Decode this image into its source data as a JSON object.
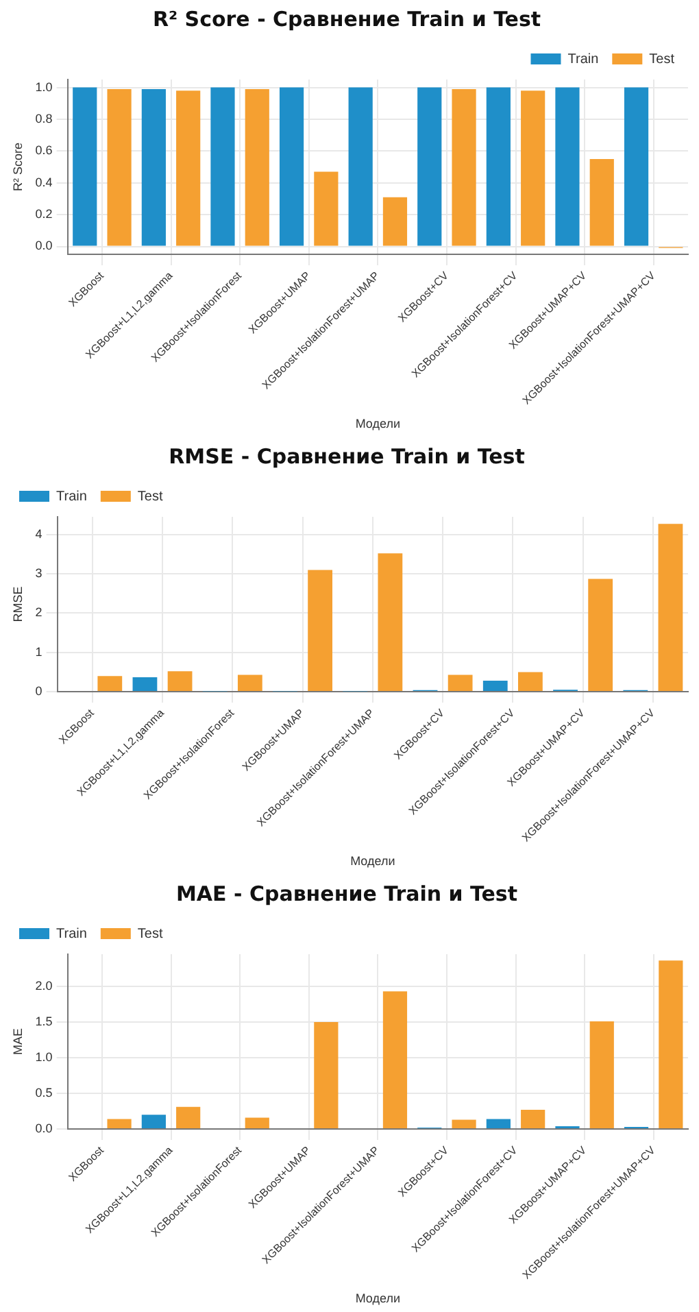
{
  "chart_data": [
    {
      "type": "bar",
      "title": "R² Score - Сравнение Train и Test",
      "xlabel": "Модели",
      "ylabel": "R² Score",
      "categories": [
        "XGBoost",
        "XGBoost+L1,L2,gamma",
        "XGBoost+IsolationForest",
        "XGBoost+UMAP",
        "XGBoost+IsolationForest+UMAP",
        "XGBoost+CV",
        "XGBoost+IsolationForest+CV",
        "XGBoost+UMAP+CV",
        "XGBoost+IsolationForest+UMAP+CV"
      ],
      "series": [
        {
          "name": "Train",
          "color": "#1f8fc9",
          "values": [
            1.0,
            0.99,
            1.0,
            1.0,
            1.0,
            1.0,
            1.0,
            1.0,
            1.0
          ]
        },
        {
          "name": "Test",
          "color": "#f5a031",
          "values": [
            0.99,
            0.98,
            0.99,
            0.47,
            0.31,
            0.99,
            0.98,
            0.55,
            -0.01
          ]
        }
      ],
      "ylim": [
        -0.05,
        1.05
      ],
      "yticks": [
        {
          "value": 0,
          "label": "0.0"
        },
        0.2,
        0.4,
        0.6,
        0.8,
        {
          "value": 1,
          "label": "1.0"
        }
      ],
      "grid": true,
      "legend": "top right"
    },
    {
      "type": "bar",
      "title": "RMSE - Сравнение Train и Test",
      "xlabel": "Модели",
      "ylabel": "RMSE",
      "categories": [
        "XGBoost",
        "XGBoost+L1,L2,gamma",
        "XGBoost+IsolationForest",
        "XGBoost+UMAP",
        "XGBoost+IsolationForest+UMAP",
        "XGBoost+CV",
        "XGBoost+IsolationForest+CV",
        "XGBoost+UMAP+CV",
        "XGBoost+IsolationForest+UMAP+CV"
      ],
      "series": [
        {
          "name": "Train",
          "color": "#1f8fc9",
          "values": [
            0.02,
            0.37,
            0.01,
            0.01,
            0.01,
            0.04,
            0.28,
            0.05,
            0.04
          ]
        },
        {
          "name": "Test",
          "color": "#f5a031",
          "values": [
            0.4,
            0.52,
            0.43,
            3.1,
            3.52,
            0.43,
            0.5,
            2.87,
            4.27
          ]
        }
      ],
      "ylim": [
        0,
        4.45
      ],
      "yticks": [
        0,
        1,
        2,
        3,
        4
      ],
      "grid": true,
      "legend": "top left"
    },
    {
      "type": "bar",
      "title": "MAE - Сравнение Train и Test",
      "xlabel": "Модели",
      "ylabel": "MAE",
      "categories": [
        "XGBoost",
        "XGBoost+L1,L2,gamma",
        "XGBoost+IsolationForest",
        "XGBoost+UMAP",
        "XGBoost+IsolationForest+UMAP",
        "XGBoost+CV",
        "XGBoost+IsolationForest+CV",
        "XGBoost+UMAP+CV",
        "XGBoost+IsolationForest+UMAP+CV"
      ],
      "series": [
        {
          "name": "Train",
          "color": "#1f8fc9",
          "values": [
            0.01,
            0.2,
            0.01,
            0.01,
            0.01,
            0.02,
            0.14,
            0.04,
            0.03
          ]
        },
        {
          "name": "Test",
          "color": "#f5a031",
          "values": [
            0.14,
            0.31,
            0.16,
            1.5,
            1.93,
            0.13,
            0.27,
            1.51,
            2.36
          ]
        }
      ],
      "ylim": [
        0,
        2.45
      ],
      "yticks": [
        {
          "value": 0,
          "label": "0.0"
        },
        0.5,
        {
          "value": 1,
          "label": "1.0"
        },
        1.5,
        {
          "value": 2,
          "label": "2.0"
        }
      ],
      "grid": true,
      "legend": "top left"
    }
  ]
}
